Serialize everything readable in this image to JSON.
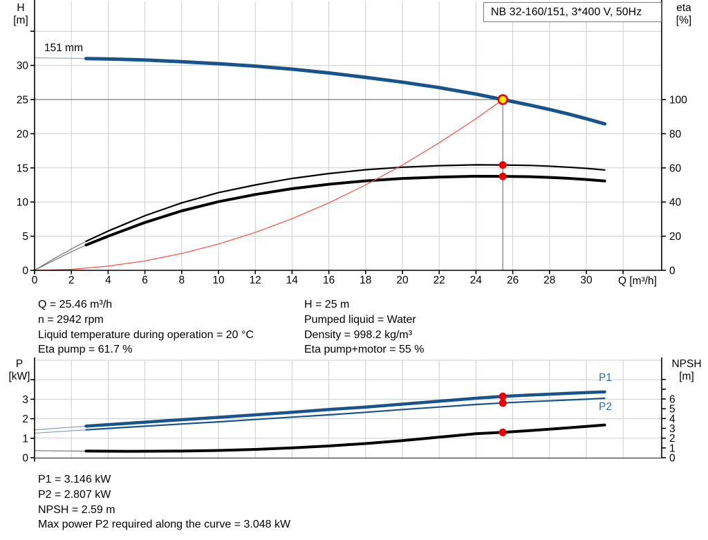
{
  "colors": {
    "curve_blue": "#17538c",
    "curve_blue_thin": "#8ea0bd",
    "curve_black_thin": "#6e6e6e",
    "label_blue": "#2f6ca5",
    "red": "#e60000",
    "system_red": "#ff4a42",
    "marker_yellow": "#ffe600",
    "grid": "#cdcdcd",
    "crosshair": "#7a7a7a",
    "axis": "#000000"
  },
  "chart_data": [
    {
      "id": "qh-chart",
      "type": "line",
      "title": "NB 32-160/151, 3*400 V, 50Hz",
      "x_axis": {
        "label": "Q [m³/h]",
        "min": 0,
        "max": 34.1,
        "ticks": [
          0,
          2,
          4,
          6,
          8,
          10,
          12,
          14,
          16,
          18,
          20,
          22,
          24,
          26,
          28,
          30
        ],
        "grid_step": 2,
        "grid_end": 32
      },
      "y_left": {
        "label_lines": [
          "H",
          "[m]"
        ],
        "ticks": [
          0,
          5,
          10,
          15,
          20,
          25,
          30
        ],
        "extra_ticks": [
          35
        ],
        "grid_values": [
          5,
          10,
          15,
          20,
          25,
          30,
          35
        ],
        "max": 39
      },
      "y_right": {
        "label_lines": [
          "eta",
          "[%]"
        ],
        "ticks": [
          0,
          20,
          40,
          60,
          80,
          100
        ],
        "extra_ticks": []
      },
      "series": [
        {
          "name": "head-curve",
          "label": "151 mm",
          "axis": "left",
          "color": "#17538c",
          "thin_color": "#8ea0bd",
          "width": 5,
          "thin_until": 2.8,
          "points": [
            [
              0,
              31.1
            ],
            [
              2,
              31.05
            ],
            [
              2.8,
              31.0
            ],
            [
              4,
              30.95
            ],
            [
              6,
              30.8
            ],
            [
              8,
              30.55
            ],
            [
              10,
              30.25
            ],
            [
              12,
              29.9
            ],
            [
              14,
              29.45
            ],
            [
              16,
              28.9
            ],
            [
              18,
              28.25
            ],
            [
              20,
              27.55
            ],
            [
              22,
              26.75
            ],
            [
              24,
              25.8
            ],
            [
              25.46,
              25
            ],
            [
              27,
              24.15
            ],
            [
              28,
              23.55
            ],
            [
              29,
              22.9
            ],
            [
              30,
              22.2
            ],
            [
              31,
              21.45
            ]
          ]
        },
        {
          "name": "eta-pump-curve",
          "label": "",
          "axis": "right",
          "color": "#000000",
          "thin_color": "#6e6e6e",
          "width": 2.2,
          "thin_until": 2.8,
          "points": [
            [
              0,
              0
            ],
            [
              1,
              6.5
            ],
            [
              2,
              12.5
            ],
            [
              2.8,
              17
            ],
            [
              4,
              23
            ],
            [
              6,
              32
            ],
            [
              8,
              39.5
            ],
            [
              10,
              45.5
            ],
            [
              12,
              50
            ],
            [
              14,
              53.8
            ],
            [
              16,
              56.7
            ],
            [
              18,
              58.9
            ],
            [
              20,
              60.4
            ],
            [
              22,
              61.3
            ],
            [
              24,
              61.8
            ],
            [
              25.46,
              61.7
            ],
            [
              27,
              61.4
            ],
            [
              28,
              61
            ],
            [
              29,
              60.4
            ],
            [
              30,
              59.7
            ],
            [
              31,
              58.8
            ]
          ]
        },
        {
          "name": "eta-pump-motor-curve",
          "label": "",
          "axis": "right",
          "color": "#000000",
          "thin_color": "#6e6e6e",
          "width": 4,
          "thin_until": 2.8,
          "points": [
            [
              0,
              0
            ],
            [
              1,
              5.6
            ],
            [
              2,
              10.9
            ],
            [
              2.8,
              14.8
            ],
            [
              4,
              20
            ],
            [
              6,
              28
            ],
            [
              8,
              34.8
            ],
            [
              10,
              40.2
            ],
            [
              12,
              44.4
            ],
            [
              14,
              47.8
            ],
            [
              16,
              50.4
            ],
            [
              18,
              52.4
            ],
            [
              20,
              53.8
            ],
            [
              22,
              54.6
            ],
            [
              24,
              55.1
            ],
            [
              25.46,
              55
            ],
            [
              27,
              54.8
            ],
            [
              28,
              54.4
            ],
            [
              29,
              53.9
            ],
            [
              30,
              53.2
            ],
            [
              31,
              52.3
            ]
          ]
        },
        {
          "name": "system-curve",
          "label": "",
          "axis": "left",
          "color": "#ff4a42",
          "thin_color": "#ff4a42",
          "width": 1.2,
          "thin_until": 0,
          "points": [
            [
              0,
              0
            ],
            [
              2,
              0.15
            ],
            [
              4,
              0.62
            ],
            [
              6,
              1.39
            ],
            [
              8,
              2.47
            ],
            [
              10,
              3.86
            ],
            [
              12,
              5.56
            ],
            [
              14,
              7.56
            ],
            [
              16,
              9.88
            ],
            [
              18,
              12.5
            ],
            [
              20,
              15.43
            ],
            [
              22,
              18.66
            ],
            [
              24,
              22.21
            ],
            [
              25.46,
              25
            ]
          ]
        }
      ],
      "duty_point": {
        "q": 25.46,
        "h": 25,
        "eta_pump": 61.7,
        "eta_pump_motor": 55
      }
    },
    {
      "id": "power-chart",
      "type": "line",
      "x_axis": {
        "label": "",
        "min": 0,
        "max": 34.1,
        "ticks": [],
        "grid_step": 2,
        "grid_end": 32
      },
      "y_left": {
        "label_lines": [
          "P",
          "[kW]"
        ],
        "ticks": [
          0,
          1,
          2,
          3
        ],
        "extra_ticks": [
          4
        ],
        "grid_values": [
          1,
          2,
          3,
          4,
          5
        ],
        "max": 5
      },
      "y_right": {
        "label_lines": [
          "NPSH",
          "[m]"
        ],
        "ticks": [
          0,
          1,
          2,
          3,
          4,
          5,
          6
        ],
        "extra_ticks": [
          7,
          8
        ]
      },
      "series": [
        {
          "name": "p1-curve",
          "label": "P1",
          "axis": "left",
          "color": "#17538c",
          "thin_color": "#7d93b8",
          "width": 4.5,
          "thin_until": 2.8,
          "points": [
            [
              0,
              1.43
            ],
            [
              2.8,
              1.62
            ],
            [
              5,
              1.76
            ],
            [
              8,
              1.95
            ],
            [
              10,
              2.07
            ],
            [
              12,
              2.2
            ],
            [
              14,
              2.33
            ],
            [
              16,
              2.47
            ],
            [
              18,
              2.6
            ],
            [
              20,
              2.75
            ],
            [
              22,
              2.9
            ],
            [
              24,
              3.05
            ],
            [
              25.46,
              3.146
            ],
            [
              27,
              3.22
            ],
            [
              28,
              3.26
            ],
            [
              29,
              3.3
            ],
            [
              30,
              3.34
            ],
            [
              31,
              3.38
            ]
          ]
        },
        {
          "name": "p2-curve",
          "label": "P2",
          "axis": "left",
          "color": "#17538c",
          "thin_color": "#7d93b8",
          "width": 2.2,
          "thin_until": 2.8,
          "points": [
            [
              0,
              1.26
            ],
            [
              2.8,
              1.43
            ],
            [
              5,
              1.56
            ],
            [
              8,
              1.73
            ],
            [
              10,
              1.84
            ],
            [
              12,
              1.96
            ],
            [
              14,
              2.08
            ],
            [
              16,
              2.2
            ],
            [
              18,
              2.33
            ],
            [
              20,
              2.47
            ],
            [
              22,
              2.6
            ],
            [
              24,
              2.73
            ],
            [
              25.46,
              2.807
            ],
            [
              27,
              2.88
            ],
            [
              28,
              2.92
            ],
            [
              29,
              2.96
            ],
            [
              30,
              3.0
            ],
            [
              31,
              3.05
            ]
          ]
        },
        {
          "name": "npsh-curve",
          "label": "",
          "axis": "right",
          "color": "#000000",
          "thin_color": "#6e6e6e",
          "width": 4,
          "thin_until": 2.8,
          "points": [
            [
              0,
              0.72
            ],
            [
              2.8,
              0.68
            ],
            [
              5,
              0.66
            ],
            [
              8,
              0.68
            ],
            [
              10,
              0.74
            ],
            [
              12,
              0.85
            ],
            [
              14,
              1.0
            ],
            [
              16,
              1.2
            ],
            [
              18,
              1.45
            ],
            [
              20,
              1.75
            ],
            [
              22,
              2.1
            ],
            [
              24,
              2.45
            ],
            [
              25.46,
              2.59
            ],
            [
              27,
              2.78
            ],
            [
              28,
              2.92
            ],
            [
              29,
              3.06
            ],
            [
              30,
              3.2
            ],
            [
              31,
              3.35
            ]
          ]
        }
      ],
      "duty_point": {
        "q": 25.46,
        "p1": 3.146,
        "p2": 2.807,
        "npsh": 2.59
      }
    }
  ],
  "annotations": {
    "operating_left": [
      "Q = 25.46 m³/h",
      "n = 2942 rpm",
      "Liquid temperature during operation = 20 °C",
      "Eta pump = 61.7 %"
    ],
    "operating_right": [
      "H = 25 m",
      "Pumped liquid = Water",
      "Density = 998.2 kg/m³",
      "Eta pump+motor = 55 %"
    ],
    "power_block": [
      "P1 = 3.146 kW",
      "P2 = 2.807 kW",
      "NPSH = 2.59 m",
      "Max power P2 required along the curve = 3.048 kW"
    ]
  }
}
